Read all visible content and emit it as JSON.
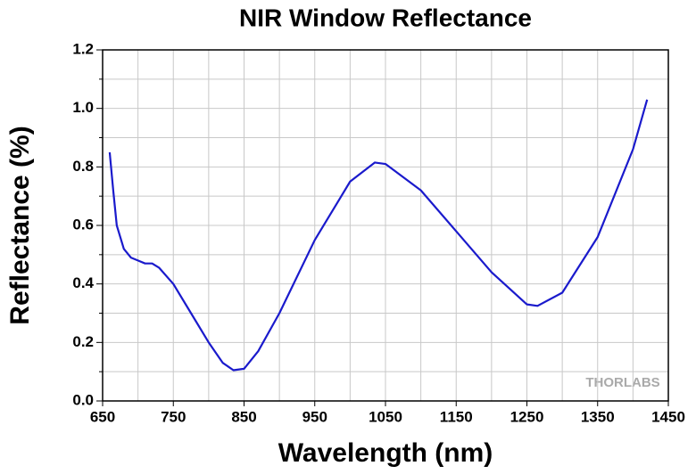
{
  "chart_data": {
    "type": "line",
    "title": "NIR Window Reflectance",
    "x_label": "Wavelength (nm)",
    "y_label": "Reflectance (%)",
    "watermark": "THORLABS",
    "x": [
      660,
      665,
      670,
      680,
      690,
      700,
      710,
      720,
      730,
      750,
      775,
      800,
      820,
      835,
      850,
      870,
      900,
      950,
      1000,
      1035,
      1050,
      1100,
      1150,
      1200,
      1250,
      1265,
      1300,
      1350,
      1400,
      1420
    ],
    "series": [
      {
        "name": "Reflectance",
        "color": "#1a1acc",
        "values": [
          0.85,
          0.72,
          0.6,
          0.52,
          0.49,
          0.48,
          0.47,
          0.47,
          0.455,
          0.4,
          0.3,
          0.2,
          0.13,
          0.105,
          0.11,
          0.17,
          0.3,
          0.55,
          0.75,
          0.815,
          0.81,
          0.72,
          0.58,
          0.44,
          0.33,
          0.325,
          0.37,
          0.56,
          0.86,
          1.03
        ]
      }
    ],
    "xlim": [
      650,
      1450
    ],
    "xticks": [
      650,
      750,
      850,
      950,
      1050,
      1150,
      1250,
      1350,
      1450
    ],
    "ylim": [
      0,
      1.2
    ],
    "yticks": [
      {
        "value": 0,
        "label": "0.0"
      },
      0.2,
      0.4,
      0.6,
      0.8,
      {
        "value": 1,
        "label": "1.0"
      },
      1.2
    ],
    "grid": true
  }
}
